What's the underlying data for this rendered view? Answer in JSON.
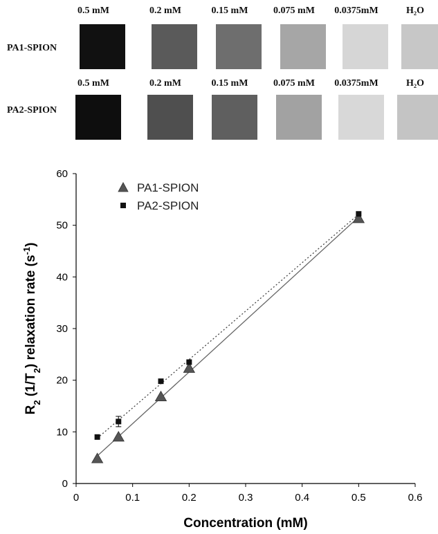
{
  "phantom_panel": {
    "rows": [
      {
        "label": "PA1-SPION",
        "concentrations": [
          "0.5 mM",
          "0.2 mM",
          "0.15 mM",
          "0.075 mM",
          "0.0375mM",
          "H₂O"
        ],
        "shades": [
          "#111111",
          "#5a5a5a",
          "#6e6e6e",
          "#a6a6a6",
          "#d6d6d6",
          "#c7c7c7"
        ]
      },
      {
        "label": "PA2-SPION",
        "concentrations": [
          "0.5 mM",
          "0.2 mM",
          "0.15 mM",
          "0.075 mM",
          "0.0375mM",
          "H₂O"
        ],
        "shades": [
          "#0e0e0e",
          "#4f4f4f",
          "#5f5f5f",
          "#a2a2a2",
          "#d8d8d8",
          "#c4c4c4"
        ]
      }
    ]
  },
  "chart_data": {
    "type": "scatter",
    "xlabel": "Concentration (mM)",
    "ylabel_parts": [
      "R",
      "2",
      " (1/T",
      "2",
      ") relaxation rate (s",
      "-1",
      ")"
    ],
    "xlim": [
      0,
      0.6
    ],
    "ylim": [
      0,
      60
    ],
    "xticks": [
      0,
      0.1,
      0.2,
      0.3,
      0.4,
      0.5,
      0.6
    ],
    "xtick_labels": [
      "0",
      "0.1",
      "0.2",
      "0.3",
      "0.4",
      "0.5",
      "0.6"
    ],
    "yticks": [
      0,
      10,
      20,
      30,
      40,
      50,
      60
    ],
    "ytick_labels": [
      "0",
      "10",
      "20",
      "30",
      "40",
      "50",
      "60"
    ],
    "grid": false,
    "legend_position": "top-left",
    "series": [
      {
        "name": "PA1-SPION",
        "marker": "triangle",
        "color": "#555555",
        "trendline": "solid",
        "x": [
          0.0375,
          0.075,
          0.15,
          0.2,
          0.5
        ],
        "y": [
          4.8,
          9.0,
          16.8,
          22.3,
          51.3
        ],
        "err": [
          0,
          0,
          0,
          0,
          0
        ]
      },
      {
        "name": "PA2-SPION",
        "marker": "square",
        "color": "#111111",
        "trendline": "dotted",
        "x": [
          0.0375,
          0.075,
          0.15,
          0.2,
          0.5
        ],
        "y": [
          9.0,
          12.0,
          19.8,
          23.5,
          52.2
        ],
        "err": [
          0,
          1.0,
          0,
          0,
          0
        ]
      }
    ]
  }
}
